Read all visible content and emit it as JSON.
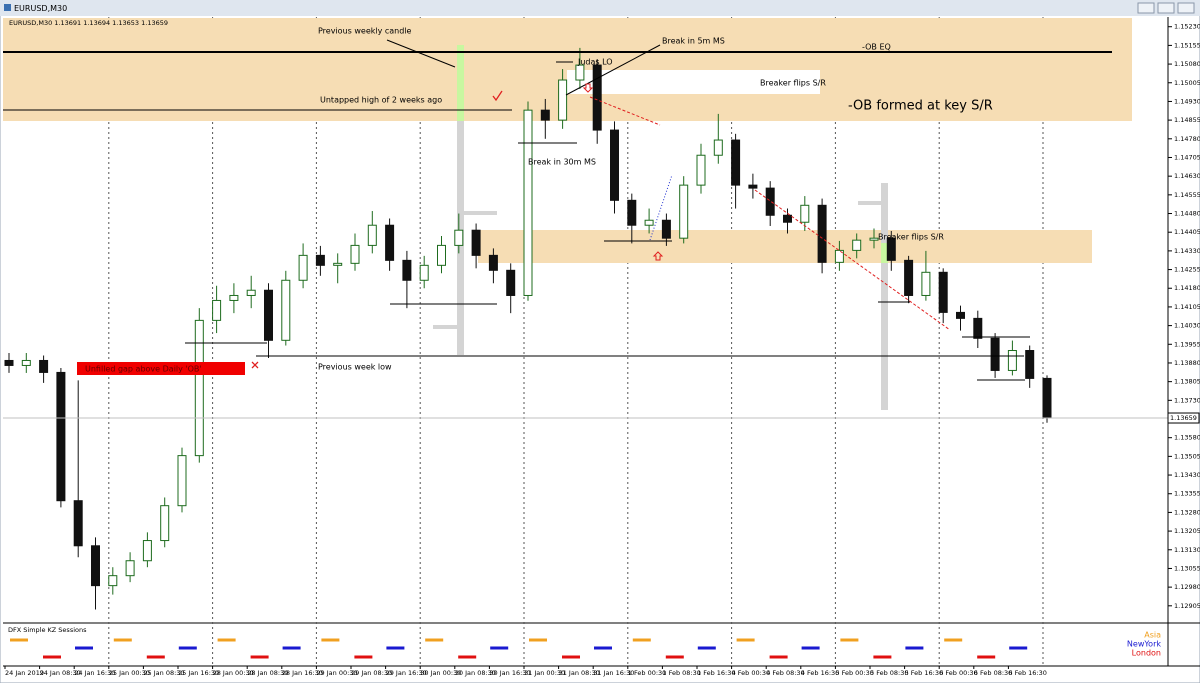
{
  "window": {
    "title": "EURUSD,M30"
  },
  "chart_data": {
    "type": "candlestick",
    "info": "EURUSD,M30  1.13691 1.13694 1.13653 1.13659",
    "x_labels": [
      "24 Jan 2019",
      "24 Jan 08:30",
      "24 Jan 16:30",
      "25 Jan 00:30",
      "25 Jan 08:30",
      "25 Jan 16:30",
      "28 Jan 00:30",
      "28 Jan 08:30",
      "28 Jan 16:30",
      "29 Jan 00:30",
      "29 Jan 08:30",
      "29 Jan 16:30",
      "30 Jan 00:30",
      "30 Jan 08:30",
      "30 Jan 16:30",
      "31 Jan 00:30",
      "31 Jan 08:30",
      "31 Jan 16:30",
      "1 Feb 00:30",
      "1 Feb 08:30",
      "1 Feb 16:30",
      "4 Feb 00:30",
      "4 Feb 08:30",
      "4 Feb 16:30",
      "5 Feb 00:30",
      "5 Feb 08:30",
      "5 Feb 16:30",
      "6 Feb 00:30",
      "6 Feb 08:30",
      "6 Feb 16:30"
    ],
    "open": [
      1.1389,
      1.1387,
      1.1389,
      1.13842,
      1.13327,
      1.13146,
      1.12986,
      1.13026,
      1.13086,
      1.13167,
      1.13307,
      1.13508,
      1.14051,
      1.14131,
      1.14151,
      1.14172,
      1.13971,
      1.14212,
      1.14312,
      1.14272,
      1.1428,
      1.14352,
      1.14433,
      1.14292,
      1.14212,
      1.14272,
      1.14352,
      1.14413,
      1.14312,
      1.14252,
      1.14151,
      1.14895,
      1.14855,
      1.15016,
      1.15076,
      1.14815,
      1.14533,
      1.14433,
      1.14453,
      1.14381,
      1.14594,
      1.14714,
      1.14775,
      1.14594,
      1.14582,
      1.14473,
      1.14445,
      1.14513,
      1.14284,
      1.14332,
      1.14373,
      1.14381,
      1.14292,
      1.14151,
      1.14244,
      1.14083,
      1.14059,
      1.13979,
      1.1385,
      1.1393,
      1.13818
    ],
    "high": [
      1.1392,
      1.1392,
      1.1391,
      1.1386,
      1.1381,
      1.1318,
      1.1306,
      1.1312,
      1.132,
      1.1334,
      1.1354,
      1.141,
      1.1419,
      1.142,
      1.1423,
      1.142,
      1.1425,
      1.1436,
      1.1435,
      1.1432,
      1.144,
      1.1449,
      1.1446,
      1.1433,
      1.1431,
      1.1439,
      1.1448,
      1.1444,
      1.1434,
      1.1428,
      1.1493,
      1.1494,
      1.1506,
      1.15145,
      1.151,
      1.1485,
      1.1456,
      1.145,
      1.1448,
      1.1463,
      1.1476,
      1.1488,
      1.148,
      1.1464,
      1.1461,
      1.145,
      1.1455,
      1.1454,
      1.1437,
      1.144,
      1.1442,
      1.1441,
      1.1431,
      1.1433,
      1.1426,
      1.1411,
      1.1409,
      1.14,
      1.1397,
      1.1395,
      1.1383
    ],
    "low": [
      1.1384,
      1.1384,
      1.138,
      1.133,
      1.131,
      1.1289,
      1.1295,
      1.13,
      1.1306,
      1.1314,
      1.1328,
      1.1348,
      1.14,
      1.1408,
      1.141,
      1.139,
      1.1395,
      1.1418,
      1.1423,
      1.142,
      1.1425,
      1.1432,
      1.1425,
      1.141,
      1.1418,
      1.1424,
      1.1432,
      1.1426,
      1.142,
      1.1408,
      1.1413,
      1.1478,
      1.1482,
      1.1498,
      1.1476,
      1.1448,
      1.1436,
      1.144,
      1.1435,
      1.1436,
      1.1456,
      1.1468,
      1.145,
      1.1454,
      1.1443,
      1.144,
      1.1441,
      1.1424,
      1.1425,
      1.143,
      1.1434,
      1.1425,
      1.1412,
      1.1413,
      1.1404,
      1.1401,
      1.1394,
      1.1382,
      1.1383,
      1.1378,
      1.1364
    ],
    "close": [
      1.1387,
      1.1389,
      1.13842,
      1.13327,
      1.13146,
      1.12986,
      1.13026,
      1.13086,
      1.13167,
      1.13307,
      1.13508,
      1.14051,
      1.14131,
      1.14151,
      1.14172,
      1.13971,
      1.14212,
      1.14312,
      1.14272,
      1.1428,
      1.14352,
      1.14433,
      1.14292,
      1.14212,
      1.14272,
      1.14352,
      1.14413,
      1.14312,
      1.14252,
      1.14151,
      1.14895,
      1.14855,
      1.15016,
      1.15076,
      1.14815,
      1.14533,
      1.14433,
      1.14453,
      1.14381,
      1.14594,
      1.14714,
      1.14775,
      1.14594,
      1.14582,
      1.14473,
      1.14445,
      1.14513,
      1.14284,
      1.14332,
      1.14373,
      1.14381,
      1.14292,
      1.14151,
      1.14244,
      1.14083,
      1.14059,
      1.13979,
      1.1385,
      1.1393,
      1.13818,
      1.13659
    ],
    "up_color": "#1e6b1e",
    "down_color": "#111111",
    "ylim": [
      1.1284,
      1.15265
    ],
    "yticks": [
      {
        "value": 1.1523,
        "label": "1.15230"
      },
      {
        "value": 1.15155,
        "label": "1.15155"
      },
      {
        "value": 1.1508,
        "label": "1.15080"
      },
      {
        "value": 1.15005,
        "label": "1.15005"
      },
      {
        "value": 1.1493,
        "label": "1.14930"
      },
      {
        "value": 1.14855,
        "label": "1.14855"
      },
      {
        "value": 1.1478,
        "label": "1.14780"
      },
      {
        "value": 1.14705,
        "label": "1.14705"
      },
      {
        "value": 1.1463,
        "label": "1.14630"
      },
      {
        "value": 1.14555,
        "label": "1.14555"
      },
      {
        "value": 1.1448,
        "label": "1.14480"
      },
      {
        "value": 1.14405,
        "label": "1.14405"
      },
      {
        "value": 1.1433,
        "label": "1.14330"
      },
      {
        "value": 1.14255,
        "label": "1.14255"
      },
      {
        "value": 1.1418,
        "label": "1.14180"
      },
      {
        "value": 1.14105,
        "label": "1.14105"
      },
      {
        "value": 1.1403,
        "label": "1.14030"
      },
      {
        "value": 1.13955,
        "label": "1.13955"
      },
      {
        "value": 1.1388,
        "label": "1.13880"
      },
      {
        "value": 1.13805,
        "label": "1.13805"
      },
      {
        "value": 1.1373,
        "label": "1.13730"
      },
      {
        "value": 1.1358,
        "label": "1.13580"
      },
      {
        "value": 1.13505,
        "label": "1.13505"
      },
      {
        "value": 1.1343,
        "label": "1.13430"
      },
      {
        "value": 1.13355,
        "label": "1.13355"
      },
      {
        "value": 1.1328,
        "label": "1.13280"
      },
      {
        "value": 1.13205,
        "label": "1.13205"
      },
      {
        "value": 1.1313,
        "label": "1.13130"
      },
      {
        "value": 1.13055,
        "label": "1.13055"
      },
      {
        "value": 1.1298,
        "label": "1.12980"
      },
      {
        "value": 1.12905,
        "label": "1.12905"
      }
    ],
    "last_price": 1.13659,
    "annotations": [
      "Previous weekly candle",
      "Break in 5m MS",
      "-OB EQ",
      "Judas LO",
      "Breaker flips S/R",
      "Untapped high of 2 weeks ago",
      "-OB formed at key S/R",
      "Break in 30m MS",
      "Breaker flips S/R",
      "Unfilled gap above Daily 'OB'",
      "Previous week low"
    ],
    "indicator": {
      "name": "DFX Simple KZ Sessions",
      "sessions": [
        {
          "name": "Asia",
          "color": "#f0a020"
        },
        {
          "name": "NewYork",
          "color": "#1a1ad0"
        },
        {
          "name": "London",
          "color": "#e01010"
        }
      ]
    }
  }
}
